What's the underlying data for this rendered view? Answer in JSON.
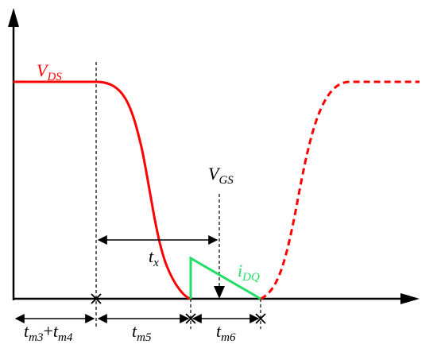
{
  "labels": {
    "vds": {
      "main": "V",
      "sub": "DS",
      "color": "#ff0000"
    },
    "vgs": {
      "main": "V",
      "sub": "GS"
    },
    "tx": {
      "main": "t",
      "sub": "x"
    },
    "idq": {
      "main": "i",
      "sub": "DQ",
      "color": "#22dd66"
    },
    "tm34": {
      "main1": "t",
      "sub1": "m3",
      "plus": "+",
      "main2": "t",
      "sub2": "m4"
    },
    "tm5": {
      "main": "t",
      "sub": "m5"
    },
    "tm6": {
      "main": "t",
      "sub": "m6"
    }
  },
  "colors": {
    "axis": "#000000",
    "vds_curve": "#ff0000",
    "vds_dashed": "#ff0000",
    "idq_curve": "#22dd66"
  }
}
